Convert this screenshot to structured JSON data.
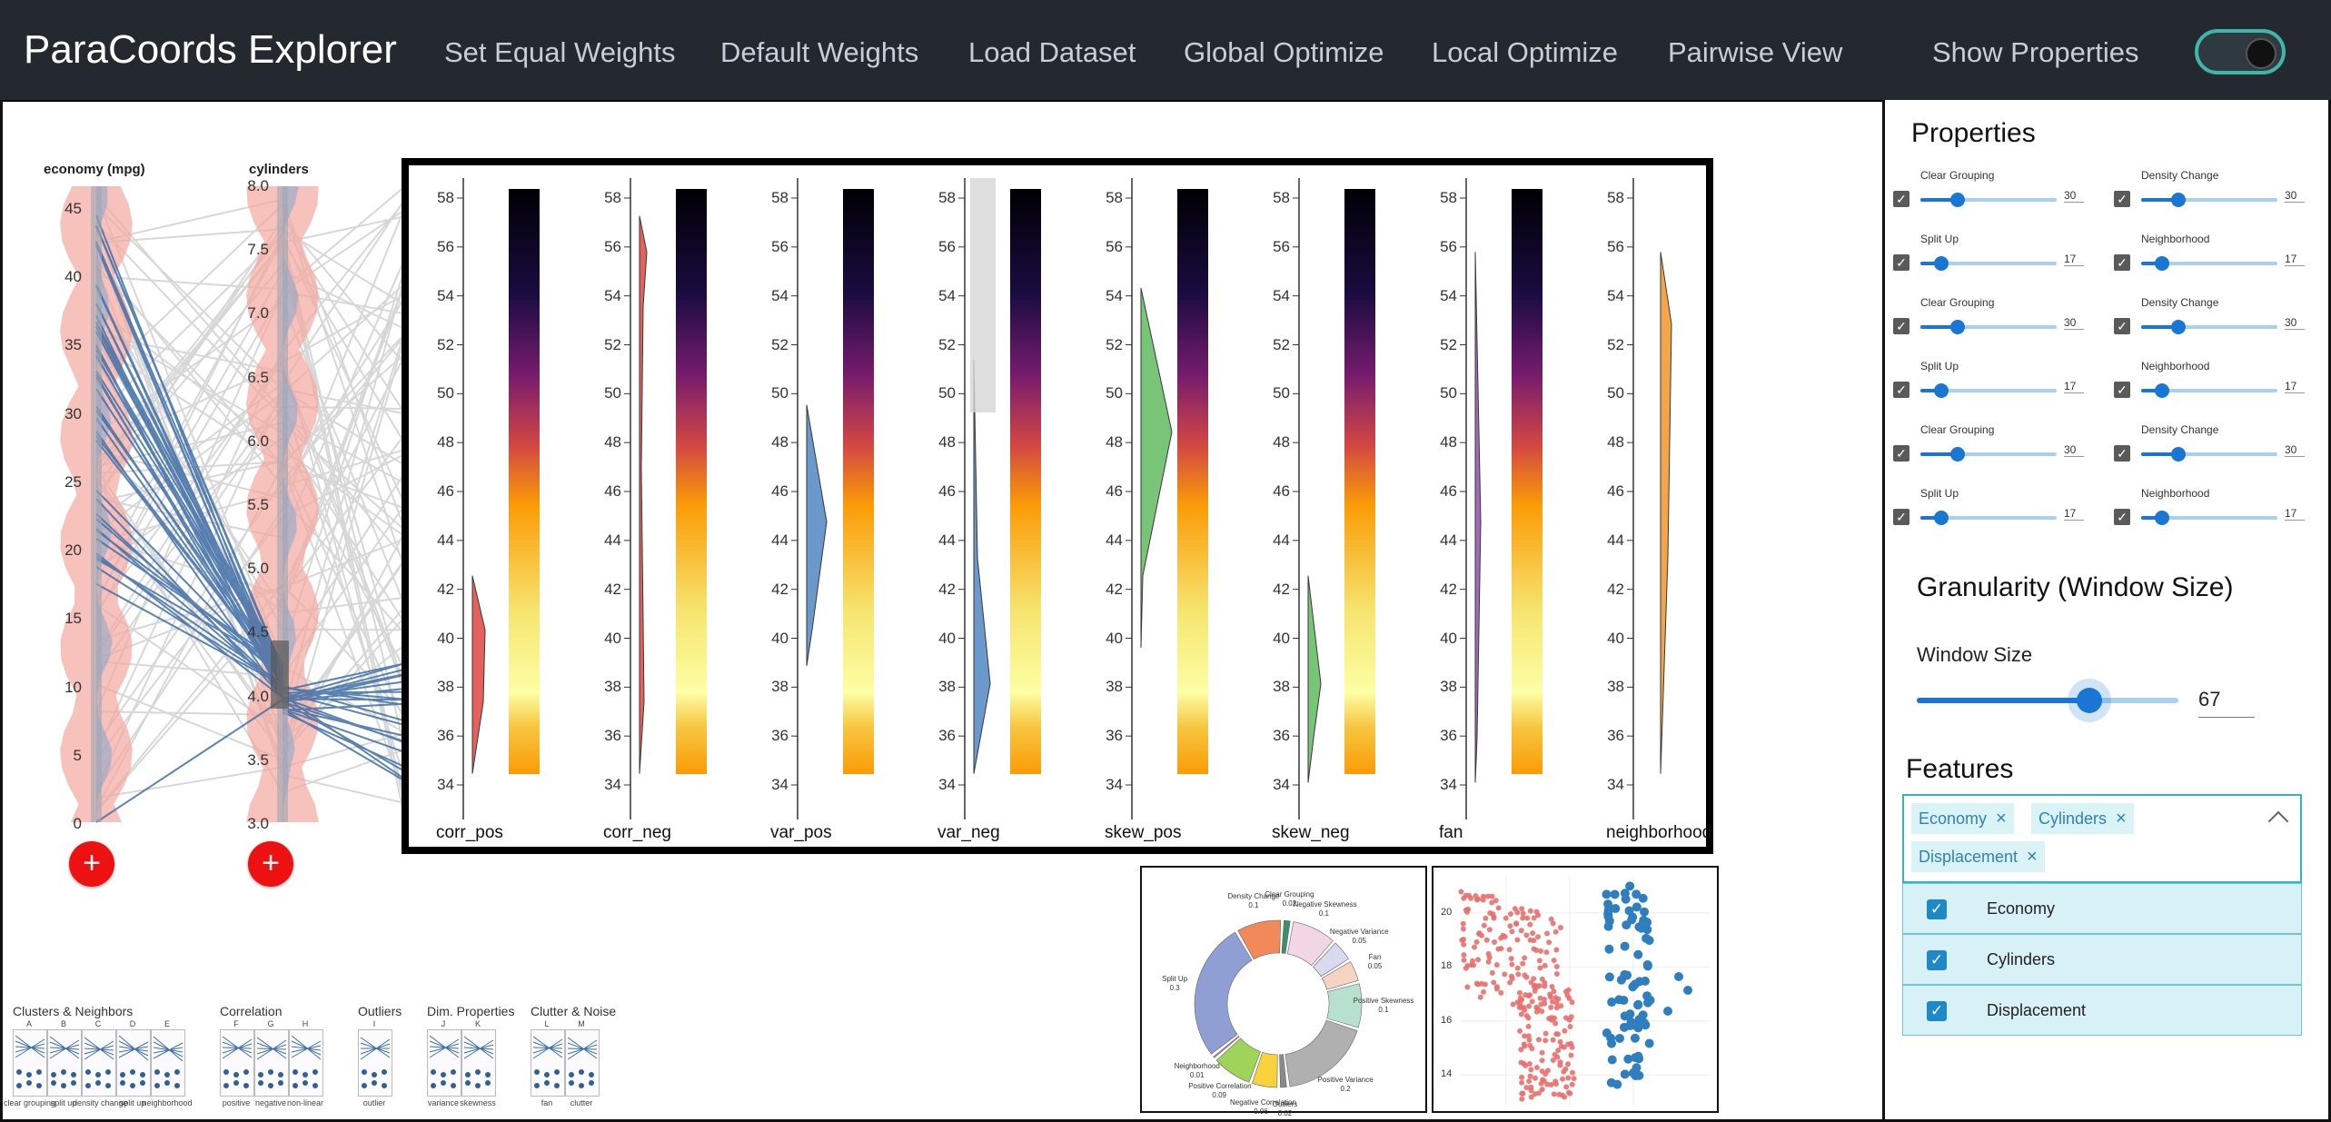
{
  "app": {
    "title": "ParaCoords Explorer"
  },
  "nav": [
    {
      "label": "Set Equal Weights"
    },
    {
      "label": "Default Weights"
    },
    {
      "label": "Load Dataset"
    },
    {
      "label": "Global Optimize"
    },
    {
      "label": "Local Optimize"
    },
    {
      "label": "Pairwise View"
    },
    {
      "label": "Show Properties"
    }
  ],
  "toggle": {
    "on": true,
    "accent": "#3fb6aa"
  },
  "axes": {
    "economy": {
      "title": "economy (mpg)",
      "ticks": [
        "45",
        "40",
        "35",
        "30",
        "25",
        "20",
        "15",
        "10",
        "5",
        "0"
      ]
    },
    "cylinders": {
      "title": "cylinders",
      "ticks": [
        "8.0",
        "7.5",
        "7.0",
        "6.5",
        "6.0",
        "5.5",
        "5.0",
        "4.5",
        "4.0",
        "3.5",
        "3.0"
      ]
    },
    "add_label": "+"
  },
  "metrics": {
    "labels": [
      "corr_pos",
      "corr_neg",
      "var_pos",
      "var_neg",
      "skew_pos",
      "skew_neg",
      "fan",
      "neighborhood"
    ],
    "yticks": [
      "58",
      "56",
      "54",
      "52",
      "50",
      "48",
      "46",
      "44",
      "42",
      "40",
      "38",
      "36",
      "34"
    ],
    "colors": {
      "corr": "#e0524a",
      "var": "#5b8fc7",
      "skew": "#6abf69",
      "fan": "#9b59b6",
      "neighborhood": "#f39c34"
    }
  },
  "properties": {
    "heading": "Properties",
    "rows": [
      {
        "left": {
          "label": "Clear Grouping",
          "value": "30",
          "level": 0.27
        },
        "right": {
          "label": "Density Change",
          "value": "30",
          "level": 0.27
        }
      },
      {
        "left": {
          "label": "Split Up",
          "value": "17",
          "level": 0.15
        },
        "right": {
          "label": "Neighborhood",
          "value": "17",
          "level": 0.15
        }
      },
      {
        "left": {
          "label": "Clear Grouping",
          "value": "30",
          "level": 0.27
        },
        "right": {
          "label": "Density Change",
          "value": "30",
          "level": 0.27
        }
      },
      {
        "left": {
          "label": "Split Up",
          "value": "17",
          "level": 0.15
        },
        "right": {
          "label": "Neighborhood",
          "value": "17",
          "level": 0.15
        }
      },
      {
        "left": {
          "label": "Clear Grouping",
          "value": "30",
          "level": 0.27
        },
        "right": {
          "label": "Density Change",
          "value": "30",
          "level": 0.27
        }
      },
      {
        "left": {
          "label": "Split Up",
          "value": "17",
          "level": 0.15
        },
        "right": {
          "label": "Neighborhood",
          "value": "17",
          "level": 0.15
        }
      }
    ],
    "check": "✓"
  },
  "granularity": {
    "heading": "Granularity (Window Size)",
    "label": "Window Size",
    "value": "67",
    "level": 0.67
  },
  "features": {
    "heading": "Features",
    "selected": [
      "Economy",
      "Cylinders",
      "Displacement"
    ],
    "remove": "×",
    "expand": "^",
    "options": [
      {
        "label": "Economy",
        "checked": true
      },
      {
        "label": "Cylinders",
        "checked": true
      },
      {
        "label": "Displacement",
        "checked": true
      }
    ]
  },
  "pattern_groups": [
    {
      "title": "Clusters & Neighbors",
      "letters": [
        "A",
        "B",
        "C",
        "D",
        "E"
      ],
      "labels": [
        "clear grouping",
        "split up",
        "density change",
        "split up",
        "neighborhood"
      ]
    },
    {
      "title": "Correlation",
      "letters": [
        "F",
        "G",
        "H"
      ],
      "labels": [
        "positive",
        "negative",
        "non-linear"
      ]
    },
    {
      "title": "Outliers",
      "letters": [
        "I"
      ],
      "labels": [
        "outlier"
      ]
    },
    {
      "title": "Dim. Properties",
      "letters": [
        "J",
        "K"
      ],
      "labels": [
        "variance",
        "skewness"
      ]
    },
    {
      "title": "Clutter & Noise",
      "letters": [
        "L",
        "M"
      ],
      "labels": [
        "fan",
        "clutter"
      ]
    }
  ],
  "chart_data": [
    {
      "type": "pie",
      "title": "",
      "slices": [
        {
          "label": "Clear Grouping",
          "value": 0.02,
          "color": "#3a8f6e"
        },
        {
          "label": "Negative Skewness",
          "value": 0.1,
          "color": "#f3d6e6"
        },
        {
          "label": "Negative Variance",
          "value": 0.05,
          "color": "#d9d9ef"
        },
        {
          "label": "Fan",
          "value": 0.05,
          "color": "#f7d3c4"
        },
        {
          "label": "Positive Skewness",
          "value": 0.1,
          "color": "#b7e0cf"
        },
        {
          "label": "Positive Variance",
          "value": 0.2,
          "color": "#b0b0b0"
        },
        {
          "label": "Outliers",
          "value": 0.02,
          "color": "#8a8a8a"
        },
        {
          "label": "Negative Correlation",
          "value": 0.06,
          "color": "#f7d23c"
        },
        {
          "label": "Positive Correlation",
          "value": 0.09,
          "color": "#9fd35a"
        },
        {
          "label": "Neighborhood",
          "value": 0.01,
          "color": "#c97bd0"
        },
        {
          "label": "Split Up",
          "value": 0.3,
          "color": "#8f9ed3"
        },
        {
          "label": "Density Change",
          "value": 0.1,
          "color": "#f2895a"
        }
      ]
    },
    {
      "type": "scatter",
      "yticks": [
        "20",
        "18",
        "16",
        "14"
      ],
      "ylim": [
        13,
        21
      ],
      "series": [
        {
          "color": "#e8706e"
        },
        {
          "color": "#2f7fc0"
        }
      ]
    }
  ]
}
